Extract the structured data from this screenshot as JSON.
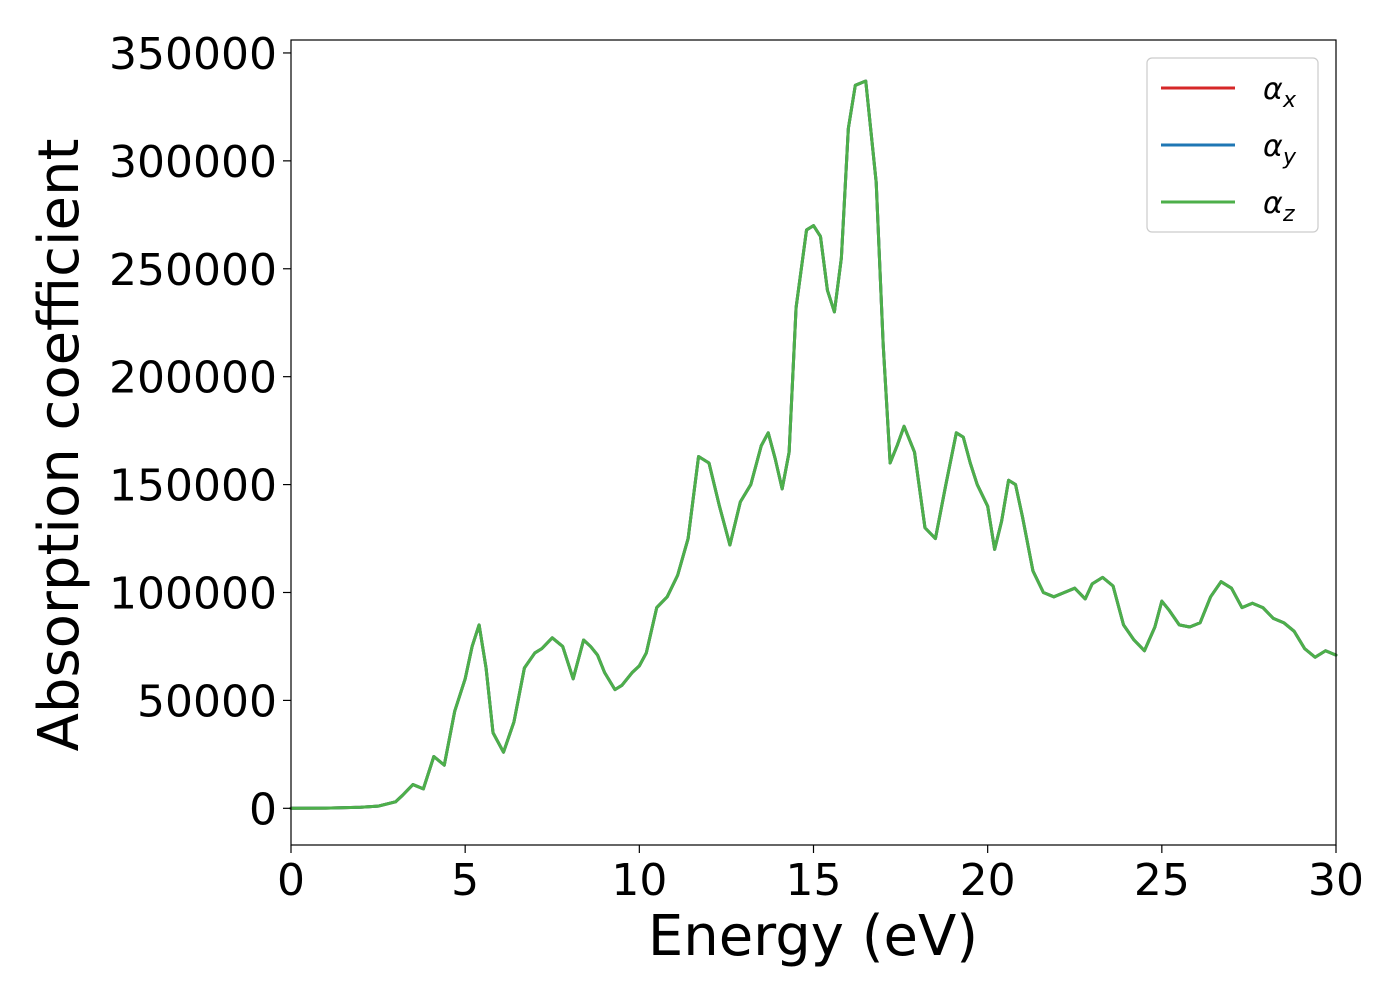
{
  "chart_data": {
    "type": "line",
    "xlabel": "Energy (eV)",
    "ylabel": "Absorption coefficient",
    "xlim": [
      0,
      30
    ],
    "ylim": [
      -17000,
      356000
    ],
    "xticks": [
      "0",
      "5",
      "10",
      "15",
      "20",
      "25",
      "30"
    ],
    "yticks": [
      "0",
      "50000",
      "100000",
      "150000",
      "200000",
      "250000",
      "300000",
      "350000"
    ],
    "grid": false,
    "legend_position": "top-right",
    "legend": [
      {
        "base": "α",
        "sub": "x",
        "color": "#d62728"
      },
      {
        "base": "α",
        "sub": "y",
        "color": "#1f77b4"
      },
      {
        "base": "α",
        "sub": "z",
        "color": "#4daf4a"
      }
    ],
    "x": [
      0,
      1,
      2,
      2.5,
      3,
      3.2,
      3.5,
      3.8,
      4.1,
      4.4,
      4.7,
      5.0,
      5.2,
      5.4,
      5.6,
      5.8,
      6.1,
      6.4,
      6.7,
      7.0,
      7.2,
      7.5,
      7.8,
      8.1,
      8.4,
      8.6,
      8.8,
      9.0,
      9.3,
      9.5,
      9.8,
      10.0,
      10.2,
      10.5,
      10.8,
      11.1,
      11.4,
      11.7,
      12.0,
      12.3,
      12.6,
      12.9,
      13.2,
      13.5,
      13.7,
      13.9,
      14.1,
      14.3,
      14.5,
      14.8,
      15.0,
      15.2,
      15.4,
      15.6,
      15.8,
      16.0,
      16.2,
      16.5,
      16.8,
      17.0,
      17.2,
      17.4,
      17.6,
      17.9,
      18.2,
      18.5,
      18.8,
      19.1,
      19.3,
      19.5,
      19.7,
      20.0,
      20.2,
      20.4,
      20.6,
      20.8,
      21.0,
      21.3,
      21.6,
      21.9,
      22.2,
      22.5,
      22.8,
      23.0,
      23.3,
      23.6,
      23.9,
      24.2,
      24.5,
      24.8,
      25.0,
      25.2,
      25.5,
      25.8,
      26.1,
      26.4,
      26.7,
      27.0,
      27.3,
      27.6,
      27.9,
      28.2,
      28.5,
      28.8,
      29.1,
      29.4,
      29.7,
      30.0
    ],
    "series": [
      {
        "name": "α_x",
        "color": "#d62728",
        "values": [
          0,
          100,
          500,
          1000,
          3000,
          6000,
          11000,
          9000,
          24000,
          20000,
          45000,
          60000,
          75000,
          85000,
          65000,
          35000,
          26000,
          40000,
          65000,
          72000,
          74000,
          79000,
          75000,
          60000,
          78000,
          75000,
          71000,
          63000,
          55000,
          57000,
          63000,
          66000,
          72000,
          93000,
          98000,
          108000,
          125000,
          163000,
          160000,
          140000,
          122000,
          142000,
          150000,
          168000,
          174000,
          162000,
          148000,
          165000,
          232000,
          268000,
          270000,
          265000,
          240000,
          230000,
          255000,
          315000,
          335000,
          337000,
          290000,
          215000,
          160000,
          168000,
          177000,
          165000,
          130000,
          125000,
          150000,
          174000,
          172000,
          160000,
          150000,
          140000,
          120000,
          133000,
          152000,
          150000,
          135000,
          110000,
          100000,
          98000,
          100000,
          102000,
          97000,
          104000,
          107000,
          103000,
          85000,
          78000,
          73000,
          84000,
          96000,
          92000,
          85000,
          84000,
          86000,
          98000,
          105000,
          102000,
          93000,
          95000,
          93000,
          88000,
          86000,
          82000,
          74000,
          70000,
          73000,
          71000
        ]
      },
      {
        "name": "α_y",
        "color": "#1f77b4",
        "values": [
          0,
          100,
          500,
          1000,
          3000,
          6000,
          11000,
          9000,
          24000,
          20000,
          45000,
          60000,
          75000,
          85000,
          65000,
          35000,
          26000,
          40000,
          65000,
          72000,
          74000,
          79000,
          75000,
          60000,
          78000,
          75000,
          71000,
          63000,
          55000,
          57000,
          63000,
          66000,
          72000,
          93000,
          98000,
          108000,
          125000,
          163000,
          160000,
          140000,
          122000,
          142000,
          150000,
          168000,
          174000,
          162000,
          148000,
          165000,
          232000,
          268000,
          270000,
          265000,
          240000,
          230000,
          255000,
          315000,
          335000,
          337000,
          290000,
          215000,
          160000,
          168000,
          177000,
          165000,
          130000,
          125000,
          150000,
          174000,
          172000,
          160000,
          150000,
          140000,
          120000,
          133000,
          152000,
          150000,
          135000,
          110000,
          100000,
          98000,
          100000,
          102000,
          97000,
          104000,
          107000,
          103000,
          85000,
          78000,
          73000,
          84000,
          96000,
          92000,
          85000,
          84000,
          86000,
          98000,
          105000,
          102000,
          93000,
          95000,
          93000,
          88000,
          86000,
          82000,
          74000,
          70000,
          73000,
          71000
        ]
      },
      {
        "name": "α_z",
        "color": "#4daf4a",
        "values": [
          0,
          100,
          500,
          1000,
          3000,
          6000,
          11000,
          9000,
          24000,
          20000,
          45000,
          60000,
          75000,
          85000,
          65000,
          35000,
          26000,
          40000,
          65000,
          72000,
          74000,
          79000,
          75000,
          60000,
          78000,
          75000,
          71000,
          63000,
          55000,
          57000,
          63000,
          66000,
          72000,
          93000,
          98000,
          108000,
          125000,
          163000,
          160000,
          140000,
          122000,
          142000,
          150000,
          168000,
          174000,
          162000,
          148000,
          165000,
          232000,
          268000,
          270000,
          265000,
          240000,
          230000,
          255000,
          315000,
          335000,
          337000,
          290000,
          215000,
          160000,
          168000,
          177000,
          165000,
          130000,
          125000,
          150000,
          174000,
          172000,
          160000,
          150000,
          140000,
          120000,
          133000,
          152000,
          150000,
          135000,
          110000,
          100000,
          98000,
          100000,
          102000,
          97000,
          104000,
          107000,
          103000,
          85000,
          78000,
          73000,
          84000,
          96000,
          92000,
          85000,
          84000,
          86000,
          98000,
          105000,
          102000,
          93000,
          95000,
          93000,
          88000,
          86000,
          82000,
          74000,
          70000,
          73000,
          71000
        ]
      }
    ]
  }
}
